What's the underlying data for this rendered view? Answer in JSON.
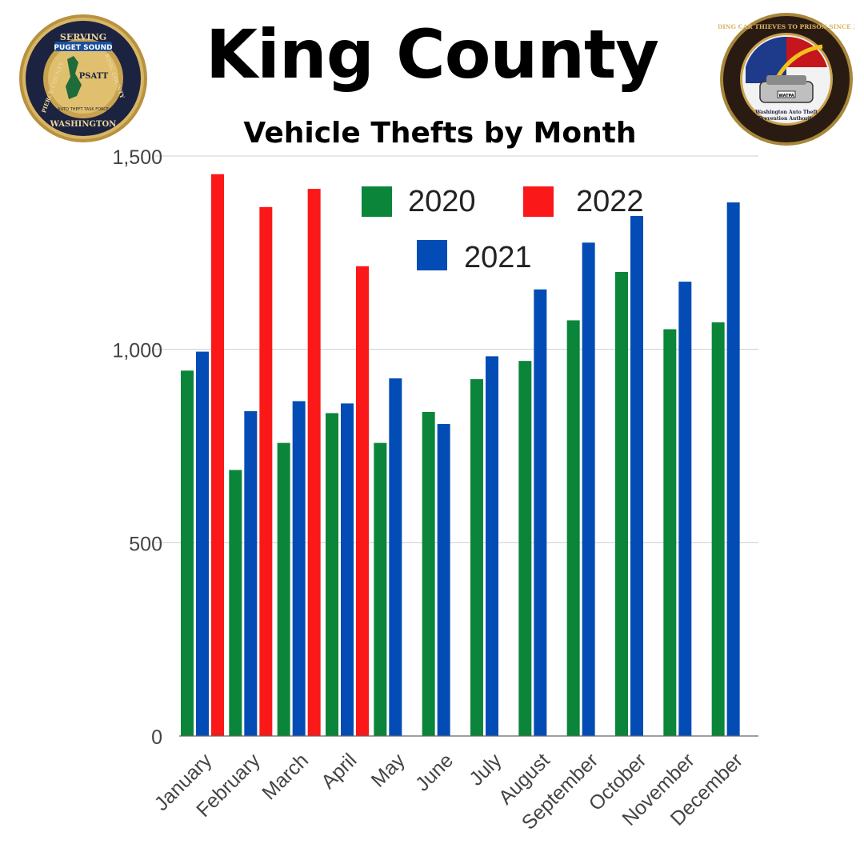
{
  "header": {
    "title": "King County",
    "subtitle": "Vehicle Thefts by Month"
  },
  "logos": {
    "left": {
      "top_text": "SERVING",
      "left_text": "PIERCE COUNTY",
      "right_text": "KING COUNTY",
      "bottom_text": "WASHINGTON",
      "banner_text": "PUGET SOUND",
      "center_text": "PSATT",
      "inner_text": "AUTO THEFT TASK FORCE"
    },
    "right": {
      "ring_text": "SENDING CAR THIEVES TO PRISON SINCE 2008",
      "plate_text": "WATPA",
      "bottom_line1": "Washington Auto Theft",
      "bottom_line2": "Prevention Authority"
    }
  },
  "chart_data": {
    "type": "bar",
    "title": "Vehicle Thefts by Month",
    "categories": [
      "January",
      "February",
      "March",
      "April",
      "May",
      "June",
      "July",
      "August",
      "September",
      "October",
      "November",
      "December"
    ],
    "series": [
      {
        "name": "2020",
        "color": "#0b853a",
        "values": [
          945,
          688,
          758,
          835,
          758,
          838,
          923,
          970,
          1075,
          1200,
          1052,
          1070
        ]
      },
      {
        "name": "2021",
        "color": "#034cb5",
        "values": [
          994,
          840,
          866,
          860,
          925,
          807,
          982,
          1155,
          1276,
          1345,
          1175,
          1380
        ]
      },
      {
        "name": "2022",
        "color": "#fb1818",
        "values": [
          1453,
          1368,
          1415,
          1215,
          null,
          null,
          null,
          null,
          null,
          null,
          null,
          null
        ]
      }
    ],
    "ylim": [
      0,
      1500
    ],
    "yticks": [
      "0",
      "500",
      "1,000",
      "1,500"
    ],
    "ytick_values": [
      0,
      500,
      1000,
      1500
    ],
    "grid": true,
    "legend_placement": "top-center",
    "xlabel": "",
    "ylabel": ""
  }
}
